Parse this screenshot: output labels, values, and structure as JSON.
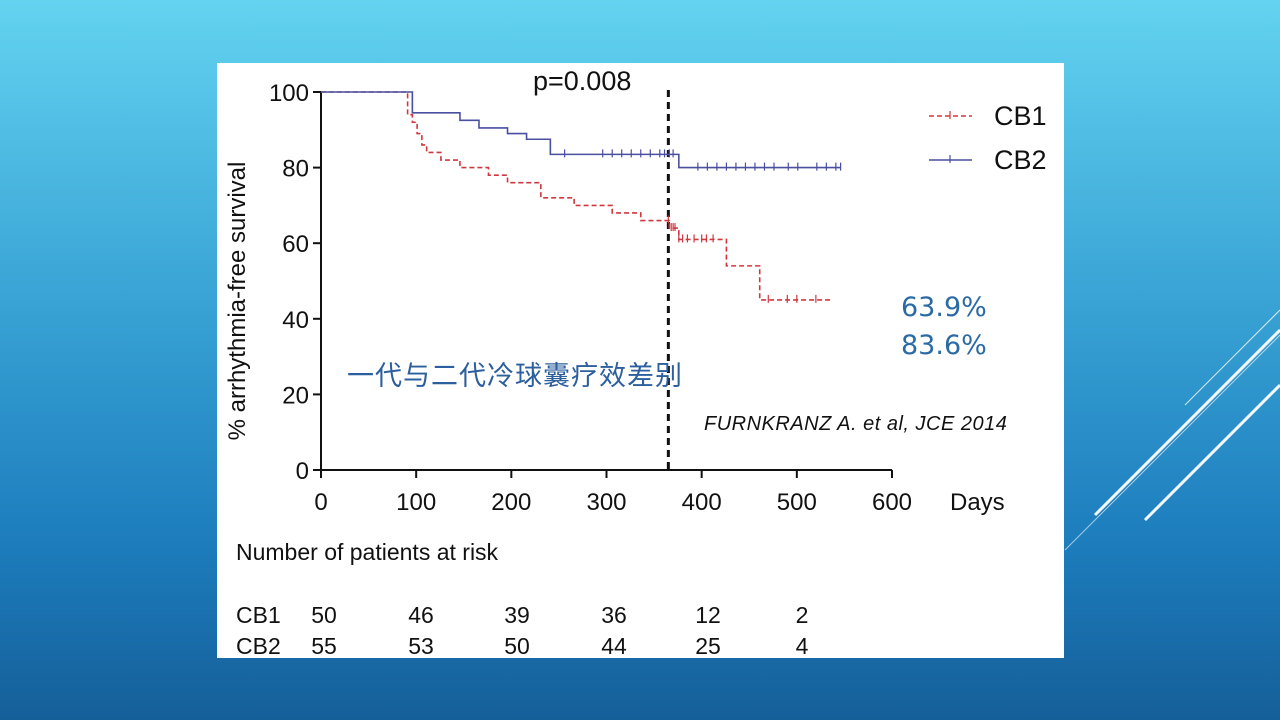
{
  "slide": {
    "caption_cn": "一代与二代冷球囊疗效差别",
    "citation": "FURNKRANZ A. et al, JCE 2014",
    "rate_cb1": "63.9%",
    "rate_cb2": "83.6%"
  },
  "chart_data": {
    "type": "line",
    "ylabel": "% arrhythmia-free survival",
    "xlabel": "Days",
    "xlim": [
      0,
      600
    ],
    "ylim": [
      0,
      100
    ],
    "xticks": [
      0,
      100,
      200,
      300,
      400,
      500,
      600
    ],
    "yticks": [
      0,
      20,
      40,
      60,
      80,
      100
    ],
    "annotation": "p=0.008",
    "reference_line_x": 365,
    "legend": "top-right",
    "series": [
      {
        "name": "CB1",
        "color": "#d0373f",
        "style": "dashed-step",
        "steps": [
          [
            0,
            100
          ],
          [
            90,
            100
          ],
          [
            91,
            94
          ],
          [
            96,
            92
          ],
          [
            101,
            89
          ],
          [
            106,
            86
          ],
          [
            111,
            84
          ],
          [
            126,
            82
          ],
          [
            146,
            80
          ],
          [
            176,
            78
          ],
          [
            196,
            76
          ],
          [
            231,
            72
          ],
          [
            266,
            70
          ],
          [
            306,
            68
          ],
          [
            336,
            66
          ],
          [
            366,
            64
          ],
          [
            376,
            61
          ],
          [
            426,
            54
          ],
          [
            461,
            45
          ],
          [
            536,
            45
          ]
        ],
        "censor_x": [
          365,
          368,
          370,
          372,
          376,
          380,
          385,
          392,
          400,
          405,
          412,
          470,
          490,
          500,
          520
        ]
      },
      {
        "name": "CB2",
        "color": "#4a4fa0",
        "style": "solid-step",
        "steps": [
          [
            0,
            100
          ],
          [
            90,
            100
          ],
          [
            96,
            94.5
          ],
          [
            146,
            92.5
          ],
          [
            166,
            90.5
          ],
          [
            196,
            89
          ],
          [
            216,
            87.5
          ],
          [
            241,
            83.5
          ],
          [
            376,
            80
          ],
          [
            546,
            80
          ]
        ],
        "censor_x": [
          256,
          296,
          306,
          316,
          326,
          336,
          346,
          356,
          361,
          366,
          370,
          396,
          406,
          416,
          426,
          436,
          446,
          456,
          466,
          476,
          491,
          501,
          521,
          531,
          541,
          546
        ]
      }
    ],
    "risk_table": {
      "title": "Number of patients at risk",
      "at_days": [
        0,
        100,
        200,
        300,
        400,
        500
      ],
      "rows": [
        {
          "label": "CB1",
          "values": [
            "50",
            "46",
            "39",
            "36",
            "12",
            "2"
          ]
        },
        {
          "label": "CB2",
          "values": [
            "55",
            "53",
            "50",
            "44",
            "25",
            "4"
          ]
        }
      ]
    }
  }
}
